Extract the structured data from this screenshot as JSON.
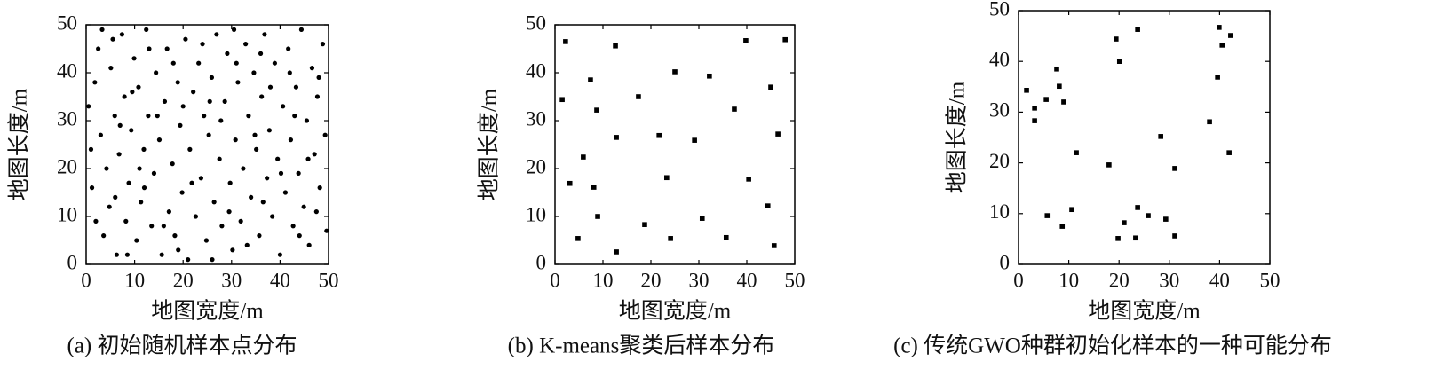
{
  "chart_data": [
    {
      "type": "scatter",
      "marker": "circle",
      "color": "#000000",
      "xlabel": "地图宽度/m",
      "ylabel": "地图长度/m",
      "caption": "(a) 初始随机样本点分布",
      "xlim": [
        0,
        50
      ],
      "ylim": [
        0,
        50
      ],
      "xticks": [
        0,
        10,
        20,
        30,
        40,
        50
      ],
      "yticks": [
        0,
        10,
        20,
        30,
        40,
        50
      ],
      "x": [
        0.5,
        1.2,
        1.8,
        2.5,
        3,
        3.6,
        4.2,
        4.8,
        5.1,
        5.9,
        6.3,
        6.8,
        7.4,
        7.9,
        8.2,
        8.8,
        9.3,
        9.9,
        10.4,
        10.8,
        11.3,
        11.9,
        12.4,
        12.8,
        13.5,
        14,
        14.4,
        15.1,
        15.6,
        16.2,
        16.7,
        17.1,
        17.8,
        18.3,
        18.9,
        19.4,
        19.8,
        20.5,
        21,
        21.4,
        22.1,
        22.6,
        23.2,
        23.7,
        24.3,
        24.8,
        25.3,
        25.9,
        26.4,
        26.9,
        27.5,
        28,
        28.6,
        29.1,
        29.7,
        30.2,
        30.8,
        31.3,
        31.9,
        32.4,
        32.9,
        33.5,
        34,
        34.6,
        35.1,
        35.7,
        36.2,
        36.8,
        37.3,
        37.8,
        38.4,
        38.9,
        39.5,
        40,
        40.6,
        41.1,
        41.7,
        42.2,
        42.7,
        43.3,
        43.8,
        44.4,
        44.9,
        45.5,
        46,
        46.6,
        47.1,
        47.7,
        48.2,
        48.8,
        49.3,
        49.6,
        2,
        3.3,
        6,
        7,
        9.5,
        11,
        13,
        14.7,
        16,
        18,
        20,
        21.8,
        24,
        26,
        27.8,
        29.5,
        31,
        33.2,
        34.8,
        36.5,
        38,
        40.2,
        42,
        44,
        45.8,
        48,
        1,
        5.5,
        12,
        19,
        25.5,
        30.5,
        36,
        43,
        47.5,
        8.5
      ],
      "y": [
        33,
        16,
        38,
        45,
        27,
        6,
        20,
        12,
        41,
        31,
        2,
        23,
        48,
        35,
        9,
        17,
        28,
        43,
        5,
        37,
        13,
        24,
        49,
        31,
        8,
        19,
        40,
        26,
        2,
        34,
        45,
        11,
        21,
        6,
        38,
        29,
        15,
        47,
        1,
        24,
        36,
        10,
        42,
        18,
        31,
        5,
        27,
        39,
        13,
        48,
        22,
        8,
        34,
        44,
        17,
        3,
        26,
        38,
        9,
        20,
        46,
        31,
        14,
        40,
        24,
        6,
        35,
        48,
        18,
        28,
        10,
        42,
        22,
        2,
        33,
        15,
        45,
        26,
        8,
        37,
        19,
        49,
        12,
        30,
        4,
        41,
        23,
        35,
        16,
        46,
        27,
        7,
        9,
        49,
        14,
        29,
        36,
        20,
        45,
        31,
        8,
        42,
        33,
        17,
        46,
        1,
        30,
        11,
        42,
        4,
        27,
        13,
        37,
        19,
        40,
        6,
        22,
        39,
        24,
        47,
        16,
        3,
        34,
        49,
        44,
        31,
        11,
        2
      ]
    },
    {
      "type": "scatter",
      "marker": "square",
      "color": "#000000",
      "xlabel": "地图宽度/m",
      "ylabel": "地图长度/m",
      "caption": "(b) K-means聚类后样本分布",
      "xlim": [
        0,
        50
      ],
      "ylim": [
        0,
        50
      ],
      "xticks": [
        0,
        10,
        20,
        30,
        40,
        50
      ],
      "yticks": [
        0,
        10,
        20,
        30,
        40,
        50
      ],
      "x": [
        2.2,
        12.6,
        39.8,
        48,
        1.5,
        7.4,
        17.4,
        25,
        32.2,
        37.4,
        45,
        8.7,
        12.8,
        21.7,
        29.1,
        46.5,
        5.9,
        3.1,
        8.1,
        23.3,
        40.4,
        44.4,
        8.9,
        18.7,
        30.7,
        4.8,
        24.1,
        35.7,
        45.7,
        12.8
      ],
      "y": [
        46.5,
        45.6,
        46.7,
        46.9,
        34.4,
        38.5,
        35,
        40.2,
        39.3,
        32.4,
        37,
        32.2,
        26.5,
        26.9,
        25.9,
        27.2,
        22.4,
        16.9,
        16.1,
        18.1,
        17.8,
        12.2,
        10,
        8.3,
        9.6,
        5.4,
        5.4,
        5.6,
        3.9,
        2.6
      ]
    },
    {
      "type": "scatter",
      "marker": "square",
      "color": "#000000",
      "xlabel": "地图宽度/m",
      "ylabel": "地图长度/m",
      "caption": "(c) 传统GWO种群初始化样本的一种可能分布",
      "xlim": [
        0,
        50
      ],
      "ylim": [
        0,
        50
      ],
      "xticks": [
        0,
        10,
        20,
        30,
        40,
        50
      ],
      "yticks": [
        0,
        10,
        20,
        30,
        40,
        50
      ],
      "x": [
        1.6,
        3.2,
        3.2,
        5.5,
        7.6,
        8.1,
        9,
        11.5,
        18,
        19.4,
        20.1,
        23.7,
        28.3,
        5.7,
        8.7,
        10.6,
        19.8,
        21,
        23.7,
        25.8,
        29.3,
        23.3,
        31.1,
        31.1,
        38,
        39.6,
        39.9,
        40.5,
        42.2,
        41.9
      ],
      "y": [
        34.3,
        30.8,
        28.3,
        32.5,
        38.5,
        35.1,
        32,
        22,
        19.6,
        44.4,
        40,
        46.3,
        25.2,
        9.6,
        7.5,
        10.8,
        5.1,
        8.2,
        11.2,
        9.6,
        8.9,
        5.2,
        5.6,
        18.9,
        28.1,
        36.9,
        46.7,
        43.2,
        45.1,
        22
      ]
    }
  ]
}
